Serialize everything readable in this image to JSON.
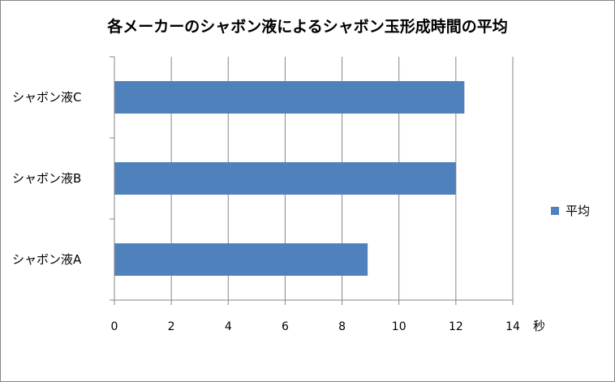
{
  "colors": {
    "bar": "#4f81bd",
    "grid": "#868686"
  },
  "chart_data": {
    "type": "bar",
    "orientation": "horizontal",
    "title": "各メーカーのシャボン液によるシャボン玉形成時間の平均",
    "categories": [
      "シャボン液A",
      "シャボン液B",
      "シャボン液C"
    ],
    "series": [
      {
        "name": "平均",
        "values": [
          8.9,
          12.0,
          12.3
        ]
      }
    ],
    "x_unit": "秒",
    "xlim": [
      0,
      14
    ],
    "xticks": [
      "0",
      "2",
      "4",
      "6",
      "8",
      "10",
      "12",
      "14"
    ],
    "grid": true,
    "legend_position": "right"
  }
}
